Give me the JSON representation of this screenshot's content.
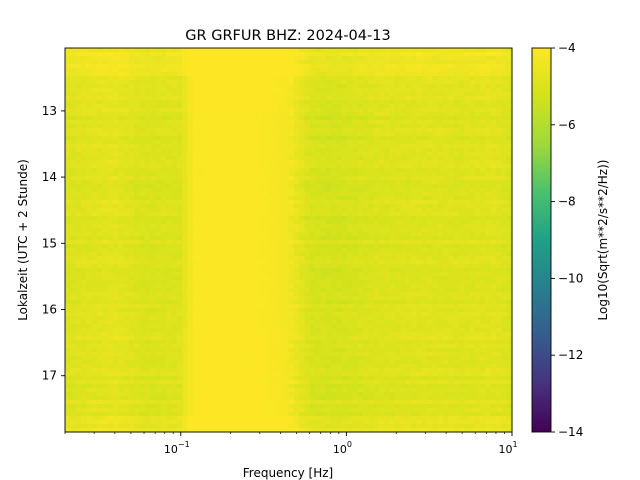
{
  "chart_data": {
    "type": "heatmap",
    "title": "GR GRFUR  BHZ: 2024-04-13",
    "xlabel": "Frequency [Hz]",
    "ylabel": "Lokalzeit (UTC + 2 Stunde)",
    "colorbar_label": "Log10(Sqrt(m**2/s**2/Hz))",
    "colormap": "viridis",
    "x_scale": "log",
    "xlim": [
      0.02,
      10
    ],
    "x_ticks": [
      {
        "value": 0.1,
        "base": "10",
        "exp": "−1"
      },
      {
        "value": 1,
        "base": "10",
        "exp": "0"
      },
      {
        "value": 10,
        "base": "10",
        "exp": "1"
      }
    ],
    "ylim": [
      12.05,
      17.85
    ],
    "y_inverted": true,
    "y_ticks": [
      13,
      14,
      15,
      16,
      17
    ],
    "color_range": [
      -14,
      -4
    ],
    "colorbar_ticks": [
      -4,
      -6,
      -8,
      -10,
      -12,
      -14
    ],
    "colorbar_tick_labels": [
      "−4",
      "−6",
      "−8",
      "−10",
      "−12",
      "−14"
    ],
    "frequency_profile": {
      "frequency_hz": [
        0.02,
        0.04,
        0.06,
        0.1,
        0.12,
        0.3,
        0.45,
        0.6,
        0.8,
        1.0,
        1.5,
        2.0,
        3.0,
        5.0,
        8.0,
        10.0
      ],
      "log10_amplitude": [
        -5.0,
        -4.75,
        -5.05,
        -4.95,
        -4.05,
        -4.05,
        -4.3,
        -5.1,
        -5.2,
        -5.15,
        -5.0,
        -4.95,
        -4.9,
        -4.95,
        -4.85,
        -5.1
      ]
    },
    "time_bands": [
      {
        "start": 12.05,
        "end": 12.45,
        "offset": 0.55
      },
      {
        "start": 12.45,
        "end": 13.0,
        "offset": 0.1
      },
      {
        "start": 13.0,
        "end": 16.3,
        "offset": 0.0
      },
      {
        "start": 16.3,
        "end": 17.6,
        "offset": 0.05
      },
      {
        "start": 17.6,
        "end": 17.85,
        "offset": 0.35
      }
    ]
  }
}
